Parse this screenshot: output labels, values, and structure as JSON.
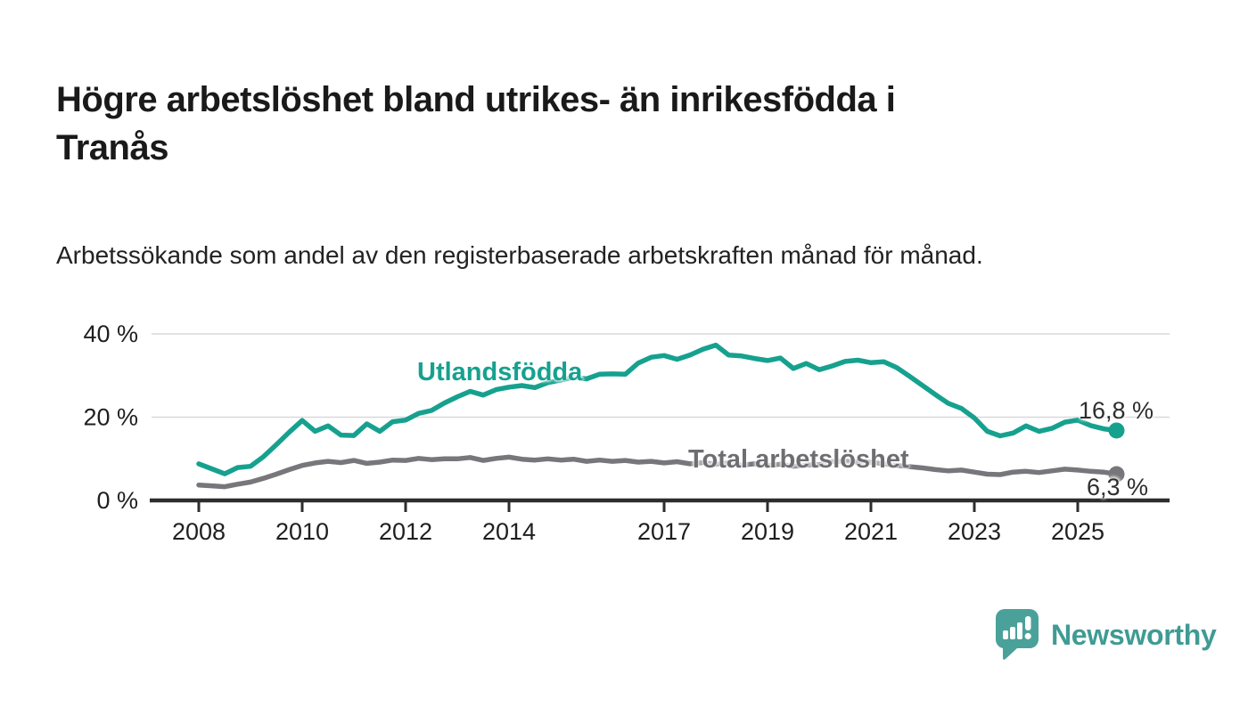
{
  "header": {
    "title_line1": "Högre arbetslöshet bland utrikes- än inrikesfödda i",
    "title_line2": "Tranås",
    "subtitle": "Arbetssökande som andel av den registerbaserade arbetskraften månad för månad."
  },
  "chart_data": {
    "type": "line",
    "title": "Högre arbetslöshet bland utrikes- än inrikesfödda i Tranås",
    "xlabel": "",
    "ylabel": "Arbetssökande som andel av den registerbaserade arbetskraften",
    "grid": "horizontal",
    "legend_position": "inline-labels",
    "xlim": [
      2007.1,
      2026.8
    ],
    "ylim": [
      0,
      43
    ],
    "x_ticks": [
      2008,
      2010,
      2012,
      2014,
      2017,
      2019,
      2021,
      2023,
      2025
    ],
    "y_ticks": [
      {
        "value": 0,
        "label": "0 %"
      },
      {
        "value": 20,
        "label": "20 %"
      },
      {
        "value": 40,
        "label": "40 %"
      }
    ],
    "x": [
      2008.0,
      2008.25,
      2008.5,
      2008.75,
      2009.0,
      2009.25,
      2009.5,
      2009.75,
      2010.0,
      2010.25,
      2010.5,
      2010.75,
      2011.0,
      2011.25,
      2011.5,
      2011.75,
      2012.0,
      2012.25,
      2012.5,
      2012.75,
      2013.0,
      2013.25,
      2013.5,
      2013.75,
      2014.0,
      2014.25,
      2014.5,
      2014.75,
      2015.0,
      2015.25,
      2015.5,
      2015.75,
      2016.0,
      2016.25,
      2016.5,
      2016.75,
      2017.0,
      2017.25,
      2017.5,
      2017.75,
      2018.0,
      2018.25,
      2018.5,
      2018.75,
      2019.0,
      2019.25,
      2019.5,
      2019.75,
      2020.0,
      2020.25,
      2020.5,
      2020.75,
      2021.0,
      2021.25,
      2021.5,
      2021.75,
      2022.0,
      2022.25,
      2022.5,
      2022.75,
      2023.0,
      2023.25,
      2023.5,
      2023.75,
      2024.0,
      2024.25,
      2024.5,
      2024.75,
      2025.0,
      2025.25,
      2025.5,
      2025.75
    ],
    "series": [
      {
        "name": "Utlandsfödda",
        "color": "#16a18f",
        "end_value": 16.8,
        "end_label": "16,8 %",
        "values": [
          8.8,
          7.6,
          6.4,
          7.9,
          8.2,
          10.5,
          13.4,
          16.4,
          19.2,
          16.6,
          17.9,
          15.7,
          15.6,
          18.4,
          16.6,
          18.9,
          19.3,
          20.9,
          21.6,
          23.4,
          24.9,
          26.2,
          25.3,
          26.6,
          27.2,
          27.6,
          27.1,
          28.3,
          28.9,
          29.6,
          29.2,
          30.3,
          30.4,
          30.3,
          33.0,
          34.4,
          34.8,
          33.9,
          34.9,
          36.3,
          37.3,
          34.9,
          34.7,
          34.1,
          33.6,
          34.2,
          31.7,
          32.9,
          31.4,
          32.3,
          33.4,
          33.7,
          33.1,
          33.3,
          31.9,
          29.8,
          27.6,
          25.4,
          23.3,
          22.1,
          19.8,
          16.6,
          15.5,
          16.2,
          17.9,
          16.6,
          17.3,
          18.8,
          19.3,
          18.0,
          17.2,
          16.8
        ]
      },
      {
        "name": "Total arbetslöshet",
        "color": "#77777b",
        "end_value": 6.3,
        "end_label": "6,3 %",
        "values": [
          3.7,
          3.5,
          3.3,
          3.9,
          4.4,
          5.3,
          6.3,
          7.4,
          8.4,
          9.0,
          9.4,
          9.1,
          9.6,
          8.9,
          9.2,
          9.7,
          9.6,
          10.1,
          9.8,
          10.0,
          10.0,
          10.3,
          9.6,
          10.1,
          10.4,
          9.9,
          9.7,
          10.0,
          9.7,
          9.9,
          9.4,
          9.7,
          9.4,
          9.6,
          9.2,
          9.4,
          9.0,
          9.3,
          8.8,
          9.1,
          8.7,
          9.0,
          8.5,
          8.8,
          8.4,
          8.7,
          8.2,
          8.5,
          8.6,
          9.3,
          9.5,
          9.2,
          9.2,
          8.8,
          8.4,
          8.1,
          7.8,
          7.4,
          7.1,
          7.3,
          6.8,
          6.3,
          6.2,
          6.8,
          7.0,
          6.7,
          7.1,
          7.5,
          7.3,
          7.0,
          6.8,
          6.3
        ]
      }
    ],
    "style": {
      "gridline_color": "#d9d9d9",
      "axis_color": "#2d2d2d",
      "tick_label_color": "#1f1f1f"
    }
  },
  "branding": {
    "logo_text": "Newsworthy",
    "logo_color": "#3f9b93",
    "icon_color": "#4aa19a"
  }
}
